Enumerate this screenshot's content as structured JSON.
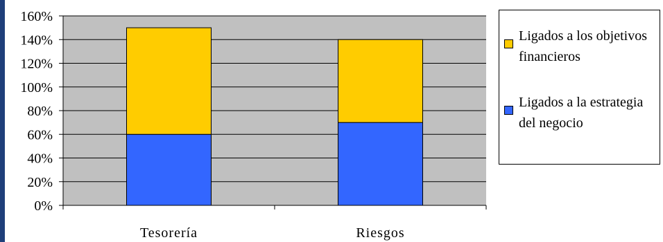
{
  "colors": {
    "plot_background": "#c0c0c0",
    "gridline": "#000000",
    "left_strip": "#1f3f7a"
  },
  "chart_data": {
    "type": "bar",
    "stacked": true,
    "categories": [
      "Tesorería",
      "Riesgos"
    ],
    "series": [
      {
        "name": "Ligados a la estrategia del negocio",
        "values": [
          60,
          70
        ],
        "color": "#3366ff"
      },
      {
        "name": "Ligados a los objetivos financieros",
        "values": [
          90,
          70
        ],
        "color": "#ffcc00"
      }
    ],
    "ylim": [
      0,
      160
    ],
    "yticks": [
      0,
      20,
      40,
      60,
      80,
      100,
      120,
      140,
      160
    ],
    "y_format": "percent",
    "grid": true,
    "legend_position": "right",
    "legend": [
      {
        "label": "Ligados a los objetivos financieros",
        "color": "#ffcc00"
      },
      {
        "label": "Ligados a la estrategia del negocio",
        "color": "#3366ff"
      }
    ]
  }
}
